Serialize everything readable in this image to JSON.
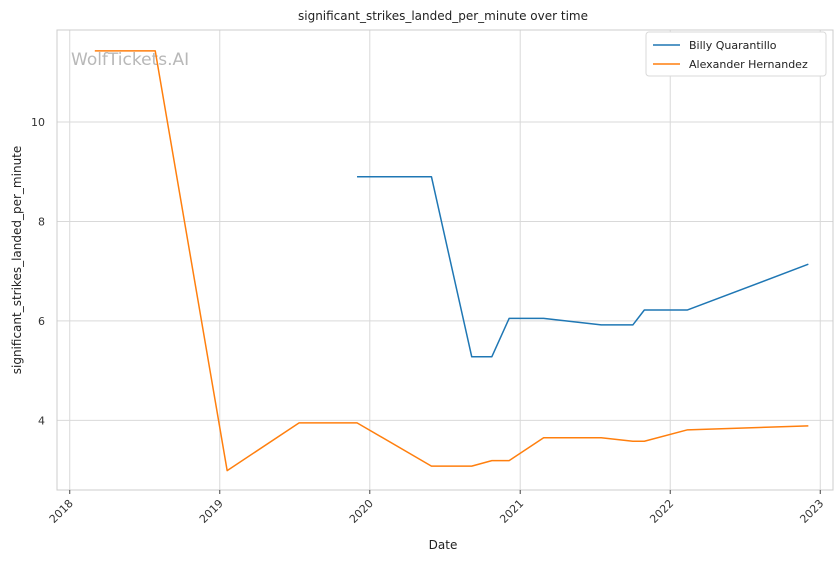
{
  "watermark": "WolfTickets.AI",
  "chart_data": {
    "type": "line",
    "title": "significant_strikes_landed_per_minute over time",
    "xlabel": "Date",
    "ylabel": "significant_strikes_landed_per_minute",
    "x_ticks": [
      "2018",
      "2019",
      "2020",
      "2021",
      "2022",
      "2023"
    ],
    "y_ticks": [
      4,
      6,
      8,
      10
    ],
    "xlim": [
      "2017-12-01",
      "2023-02-01"
    ],
    "ylim": [
      2.6,
      11.85
    ],
    "grid": true,
    "legend_position": "top-right",
    "series": [
      {
        "name": "Billy Quarantillo",
        "color": "#1f77b4",
        "points": [
          [
            "2019-12-01",
            8.9
          ],
          [
            "2020-05-30",
            8.9
          ],
          [
            "2020-09-05",
            5.28
          ],
          [
            "2020-10-24",
            5.28
          ],
          [
            "2020-12-05",
            6.05
          ],
          [
            "2021-02-27",
            6.05
          ],
          [
            "2021-07-17",
            5.92
          ],
          [
            "2021-10-02",
            5.92
          ],
          [
            "2021-10-30",
            6.22
          ],
          [
            "2022-02-12",
            6.22
          ],
          [
            "2022-12-03",
            7.14
          ]
        ]
      },
      {
        "name": "Alexander Hernandez",
        "color": "#ff7f0e",
        "points": [
          [
            "2018-03-03",
            11.43
          ],
          [
            "2018-07-28",
            11.43
          ],
          [
            "2019-01-19",
            2.99
          ],
          [
            "2019-07-13",
            3.95
          ],
          [
            "2019-12-01",
            3.95
          ],
          [
            "2020-05-30",
            3.08
          ],
          [
            "2020-09-05",
            3.08
          ],
          [
            "2020-10-24",
            3.19
          ],
          [
            "2020-12-05",
            3.19
          ],
          [
            "2021-02-27",
            3.65
          ],
          [
            "2021-07-17",
            3.65
          ],
          [
            "2021-10-02",
            3.58
          ],
          [
            "2021-10-30",
            3.58
          ],
          [
            "2022-02-12",
            3.81
          ],
          [
            "2022-12-03",
            3.89
          ]
        ]
      }
    ]
  }
}
